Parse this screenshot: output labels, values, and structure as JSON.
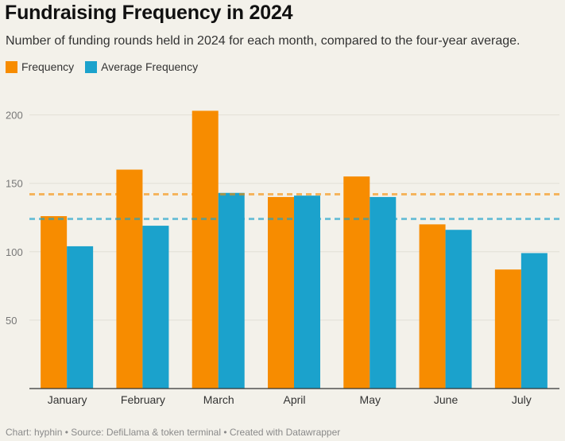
{
  "title": "Fundraising Frequency in 2024",
  "subtitle": "Number of funding rounds held in 2024 for each month, compared to the four-year average.",
  "footer": "Chart: hyphin • Source: DefiLlama & token terminal • Created with Datawrapper",
  "colors": {
    "frequency": "#f78c00",
    "average": "#1ba2cc",
    "background": "#f3f1ea"
  },
  "chart_data": {
    "type": "bar",
    "categories": [
      "January",
      "February",
      "March",
      "April",
      "May",
      "June",
      "July"
    ],
    "series": [
      {
        "name": "Frequency",
        "values": [
          126,
          160,
          203,
          140,
          155,
          120,
          87
        ]
      },
      {
        "name": "Average Frequency",
        "values": [
          104,
          119,
          143,
          141,
          140,
          116,
          99
        ]
      }
    ],
    "reference_lines": [
      {
        "series": "Frequency",
        "value": 142
      },
      {
        "series": "Average Frequency",
        "value": 124
      }
    ],
    "yticks": [
      50,
      100,
      150,
      200
    ],
    "ylim": [
      0,
      210
    ],
    "grid": true,
    "legend_position": "top-left"
  }
}
